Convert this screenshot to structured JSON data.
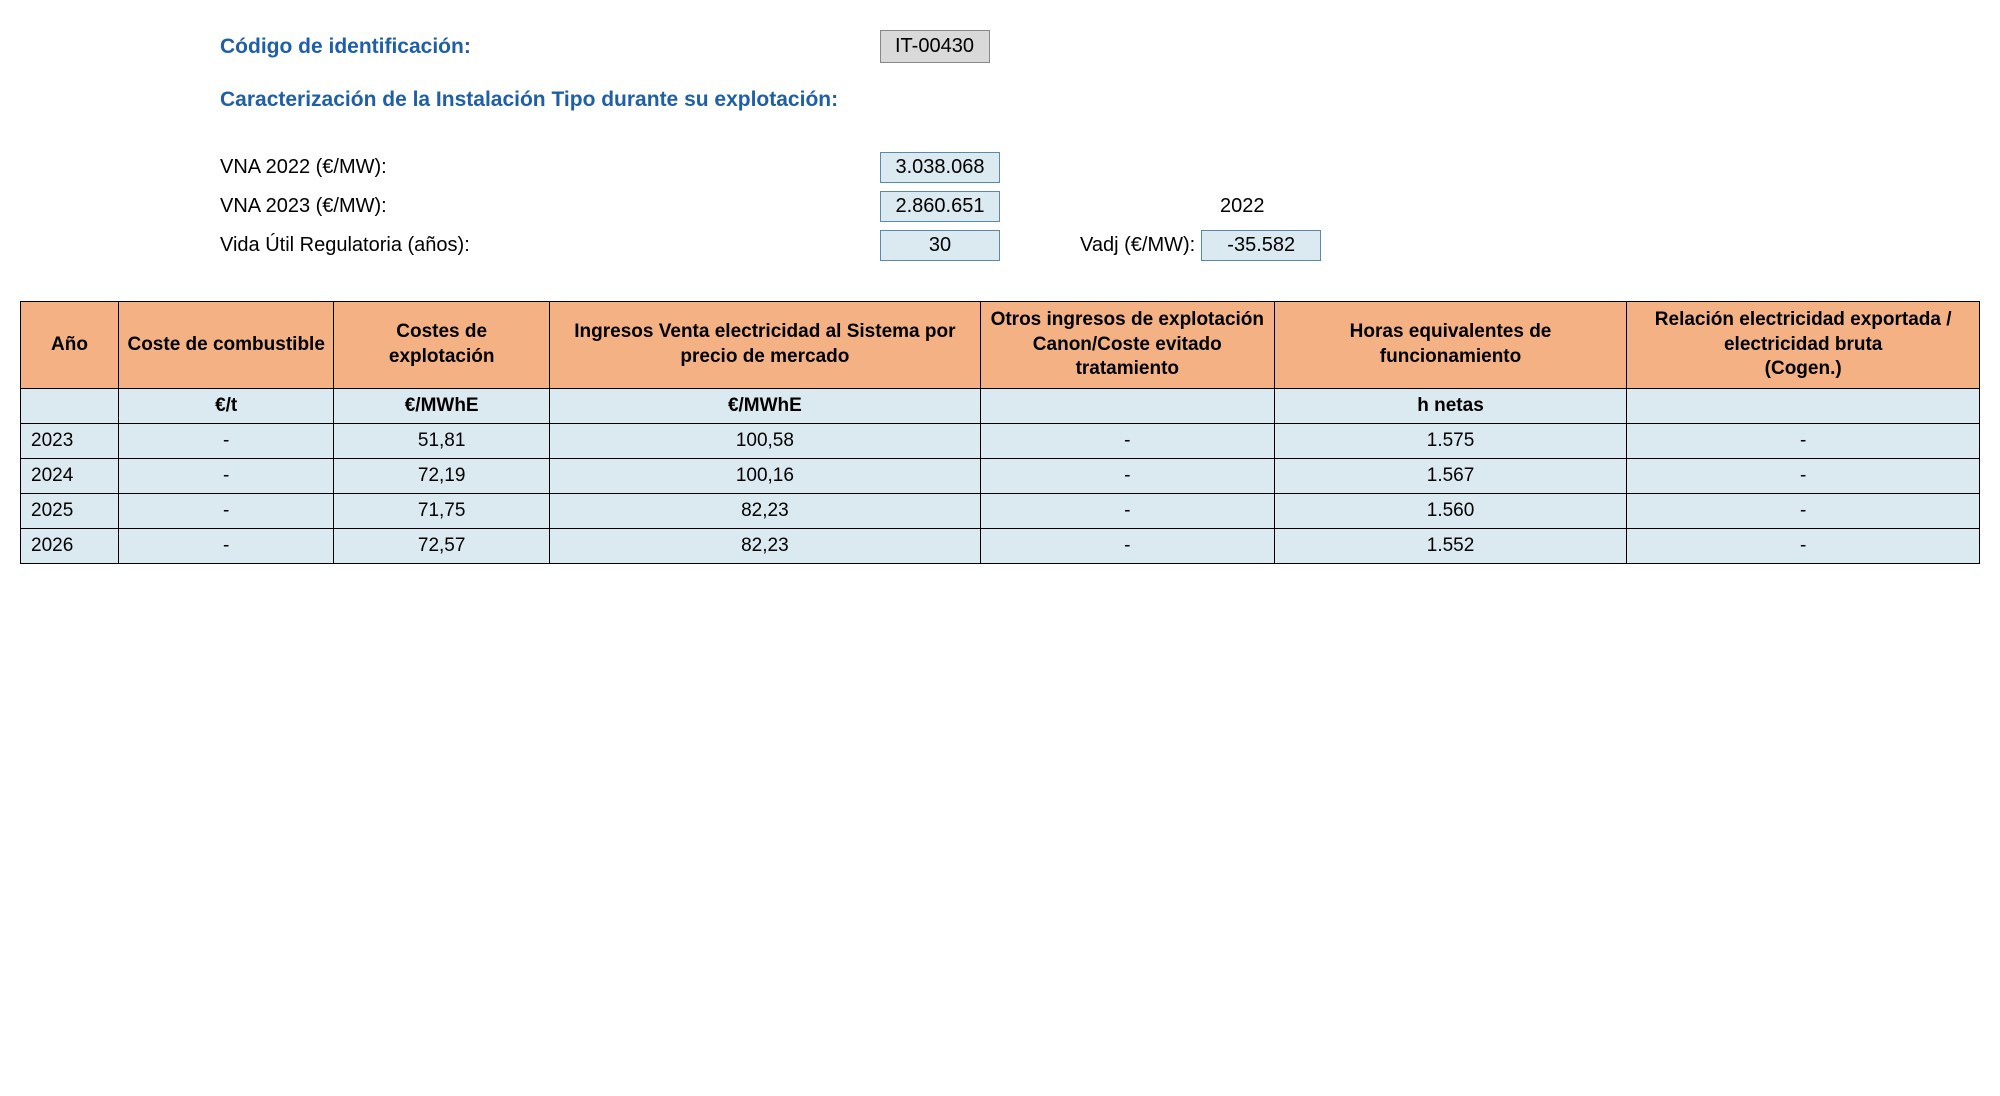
{
  "header": {
    "code_label": "Código de identificación:",
    "code_value": "IT-00430",
    "section_title": "Caracterización de la Instalación Tipo durante su explotación:",
    "vna2022_label": "VNA 2022 (€/MW):",
    "vna2022_value": "3.038.068",
    "vna2023_label": "VNA 2023 (€/MW):",
    "vna2023_value": "2.860.651",
    "vida_label": "Vida Útil Regulatoria (años):",
    "vida_value": "30",
    "year_ref": "2022",
    "vadj_label": "Vadj (€/MW):",
    "vadj_value": "-35.582"
  },
  "table": {
    "columns": [
      "Año",
      "Coste de combustible",
      "Costes de explotación",
      "Ingresos Venta electricidad al Sistema por precio de mercado",
      "Otros ingresos de explotación Canon/Coste evitado tratamiento",
      "Horas equivalentes de funcionamiento",
      "Relación electricidad exportada / electricidad bruta\n(Cogen.)"
    ],
    "units": [
      "",
      "€/t",
      "€/MWhE",
      "€/MWhE",
      "",
      "h netas",
      ""
    ],
    "rows": [
      [
        "2023",
        "-",
        "51,81",
        "100,58",
        "-",
        "1.575",
        "-"
      ],
      [
        "2024",
        "-",
        "72,19",
        "100,16",
        "-",
        "1.567",
        "-"
      ],
      [
        "2025",
        "-",
        "71,75",
        "82,23",
        "-",
        "1.560",
        "-"
      ],
      [
        "2026",
        "-",
        "72,57",
        "82,23",
        "-",
        "1.552",
        "-"
      ]
    ],
    "header_bg": "#f4b183",
    "cell_bg": "#dbeaf0",
    "border_color": "#000000"
  }
}
